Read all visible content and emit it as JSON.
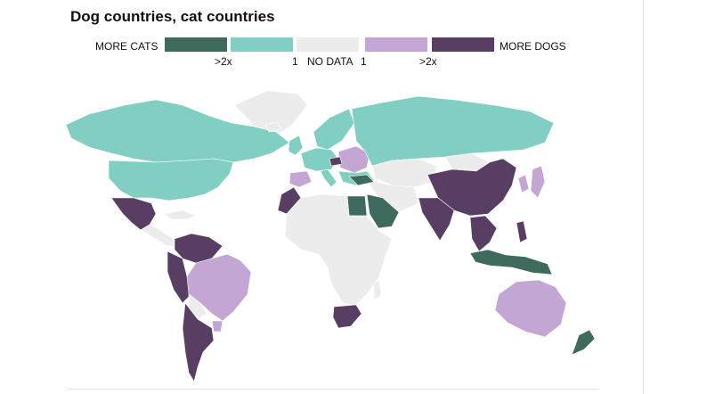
{
  "title": "Dog countries, cat countries",
  "legend": {
    "left_label": "MORE CATS",
    "right_label": "MORE DOGS",
    "categories": [
      {
        "key": "cats_strong",
        "color": "#3e6b5e"
      },
      {
        "key": "cats",
        "color": "#80cfc2"
      },
      {
        "key": "nodata",
        "color": "#ececec"
      },
      {
        "key": "dogs",
        "color": "#c3a6d4"
      },
      {
        "key": "dogs_strong",
        "color": "#573e62"
      }
    ],
    "ticks": [
      ">2x",
      "1",
      "NO DATA",
      "1",
      ">2x"
    ]
  },
  "colors": {
    "background": "#ffffff",
    "no_data": "#ececec",
    "cats_strong": "#3e6b5e",
    "cats": "#80cfc2",
    "dogs": "#c3a6d4",
    "dogs_strong": "#573e62"
  }
}
